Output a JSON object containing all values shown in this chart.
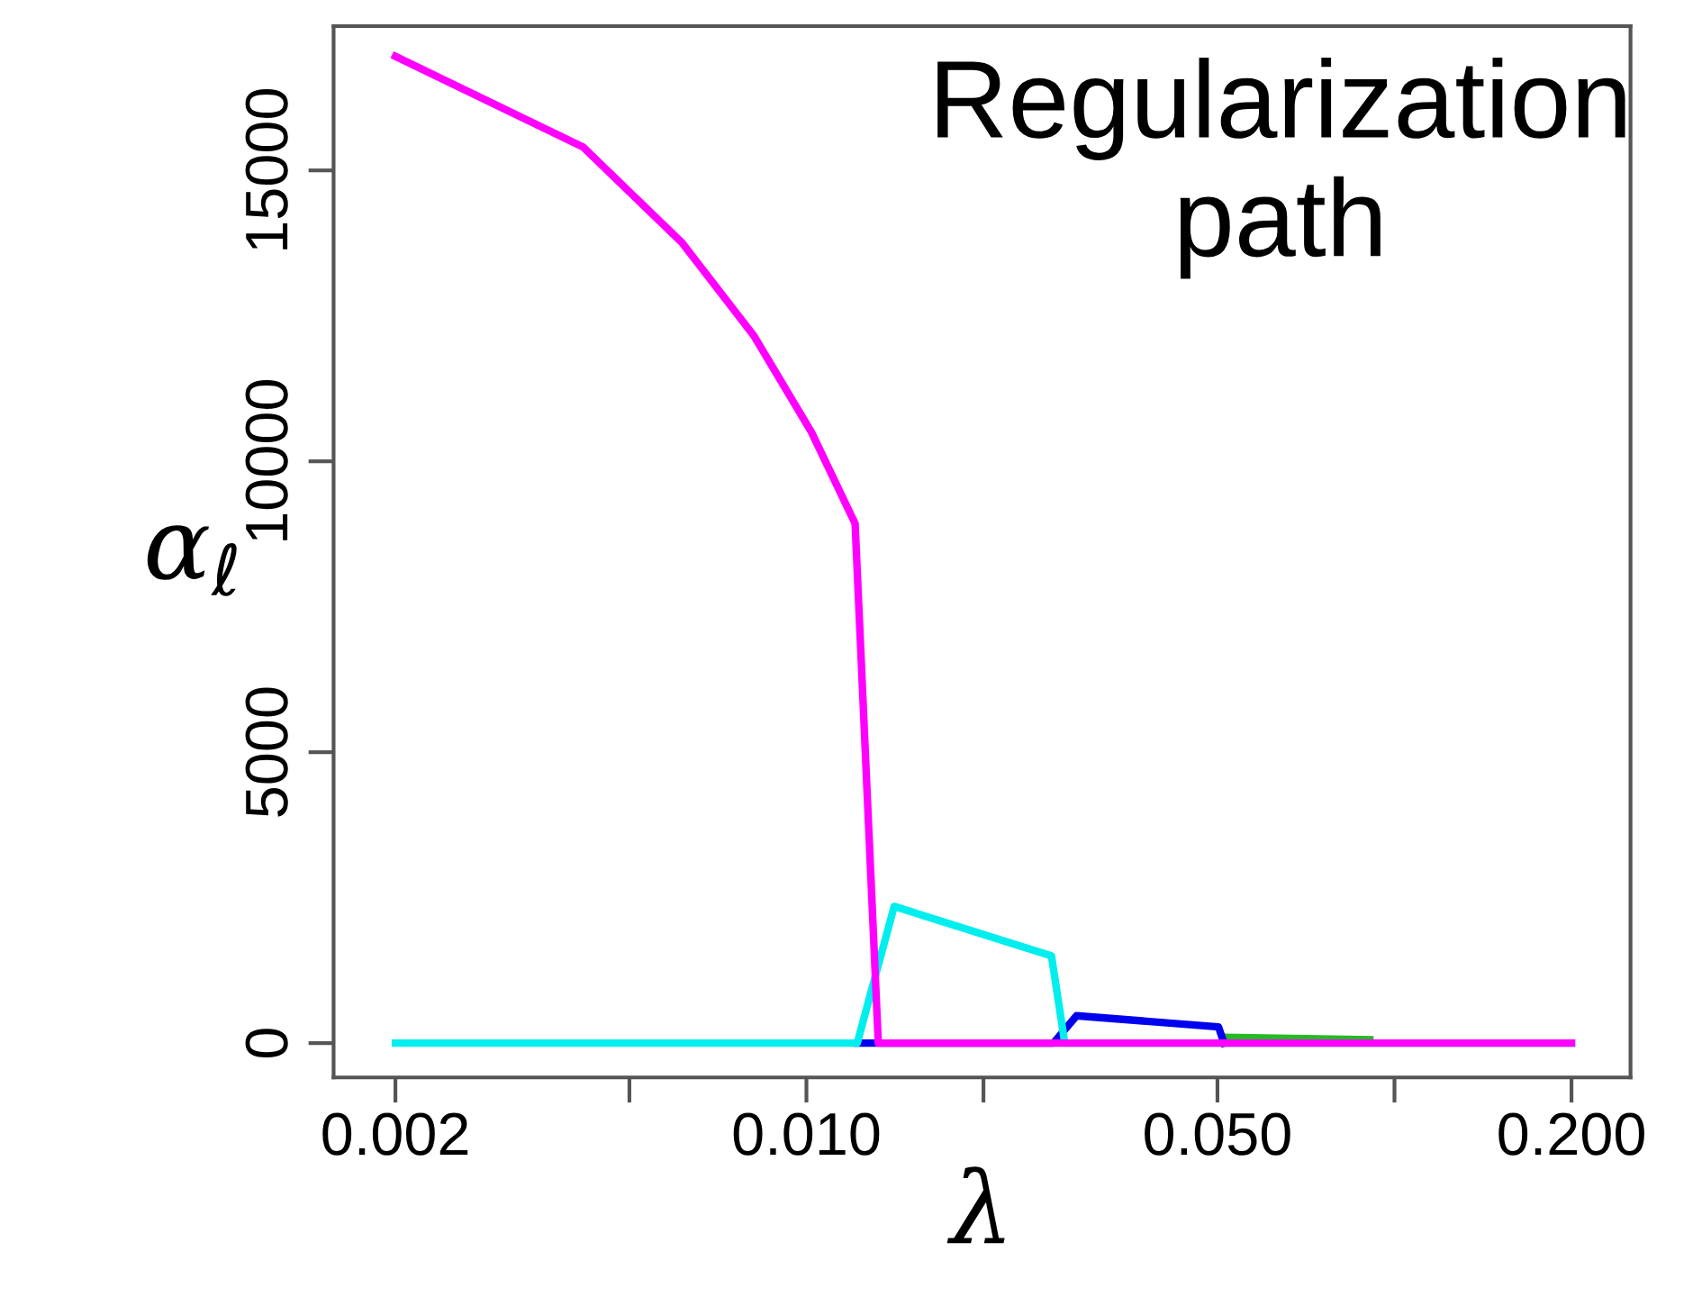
{
  "chart_data": {
    "type": "line",
    "xlabel": "λ",
    "ylabel": "α$_{ℓ}$",
    "annotations": [
      "Regularization path"
    ],
    "log": "x",
    "grid": false,
    "legend": false,
    "marker": "none",
    "line_style": "solid",
    "xlim": [
      0.00157,
      0.252
    ],
    "ylim": [
      -590,
      17480
    ],
    "xticks": [
      0.002,
      {
        "value": 0.005,
        "label": null
      },
      {
        "value": 0.01,
        "label": "0.010"
      },
      {
        "value": 0.02,
        "label": null
      },
      {
        "value": 0.05,
        "label": "0.050"
      },
      {
        "value": 0.1,
        "label": null
      },
      {
        "value": 0.2,
        "label": "0.200"
      }
    ],
    "yticks": [
      0,
      5000,
      10000,
      15000
    ],
    "series": [
      {
        "color": "#22bb22",
        "x": [
          0.0513,
          0.0908
        ],
        "values": [
          100,
          60
        ]
      },
      {
        "color": "#0000ee",
        "x": [
          0.0122,
          0.0263,
          0.0288,
          0.0502,
          0.0513
        ],
        "values": [
          0,
          0,
          470,
          280,
          0
        ]
      },
      {
        "color": "#00eeee",
        "x": [
          0.002,
          0.0122,
          0.0141,
          0.0261,
          0.0275,
          0.2
        ],
        "values": [
          0,
          0,
          2350,
          1500,
          0,
          0
        ]
      },
      {
        "color": "#ff00ff",
        "x": [
          0.002,
          0.00417,
          0.00614,
          0.00815,
          0.0102,
          0.0121,
          0.01325,
          0.2
        ],
        "values": [
          16960,
          15400,
          13760,
          12150,
          10500,
          8930,
          0,
          0
        ]
      }
    ]
  }
}
